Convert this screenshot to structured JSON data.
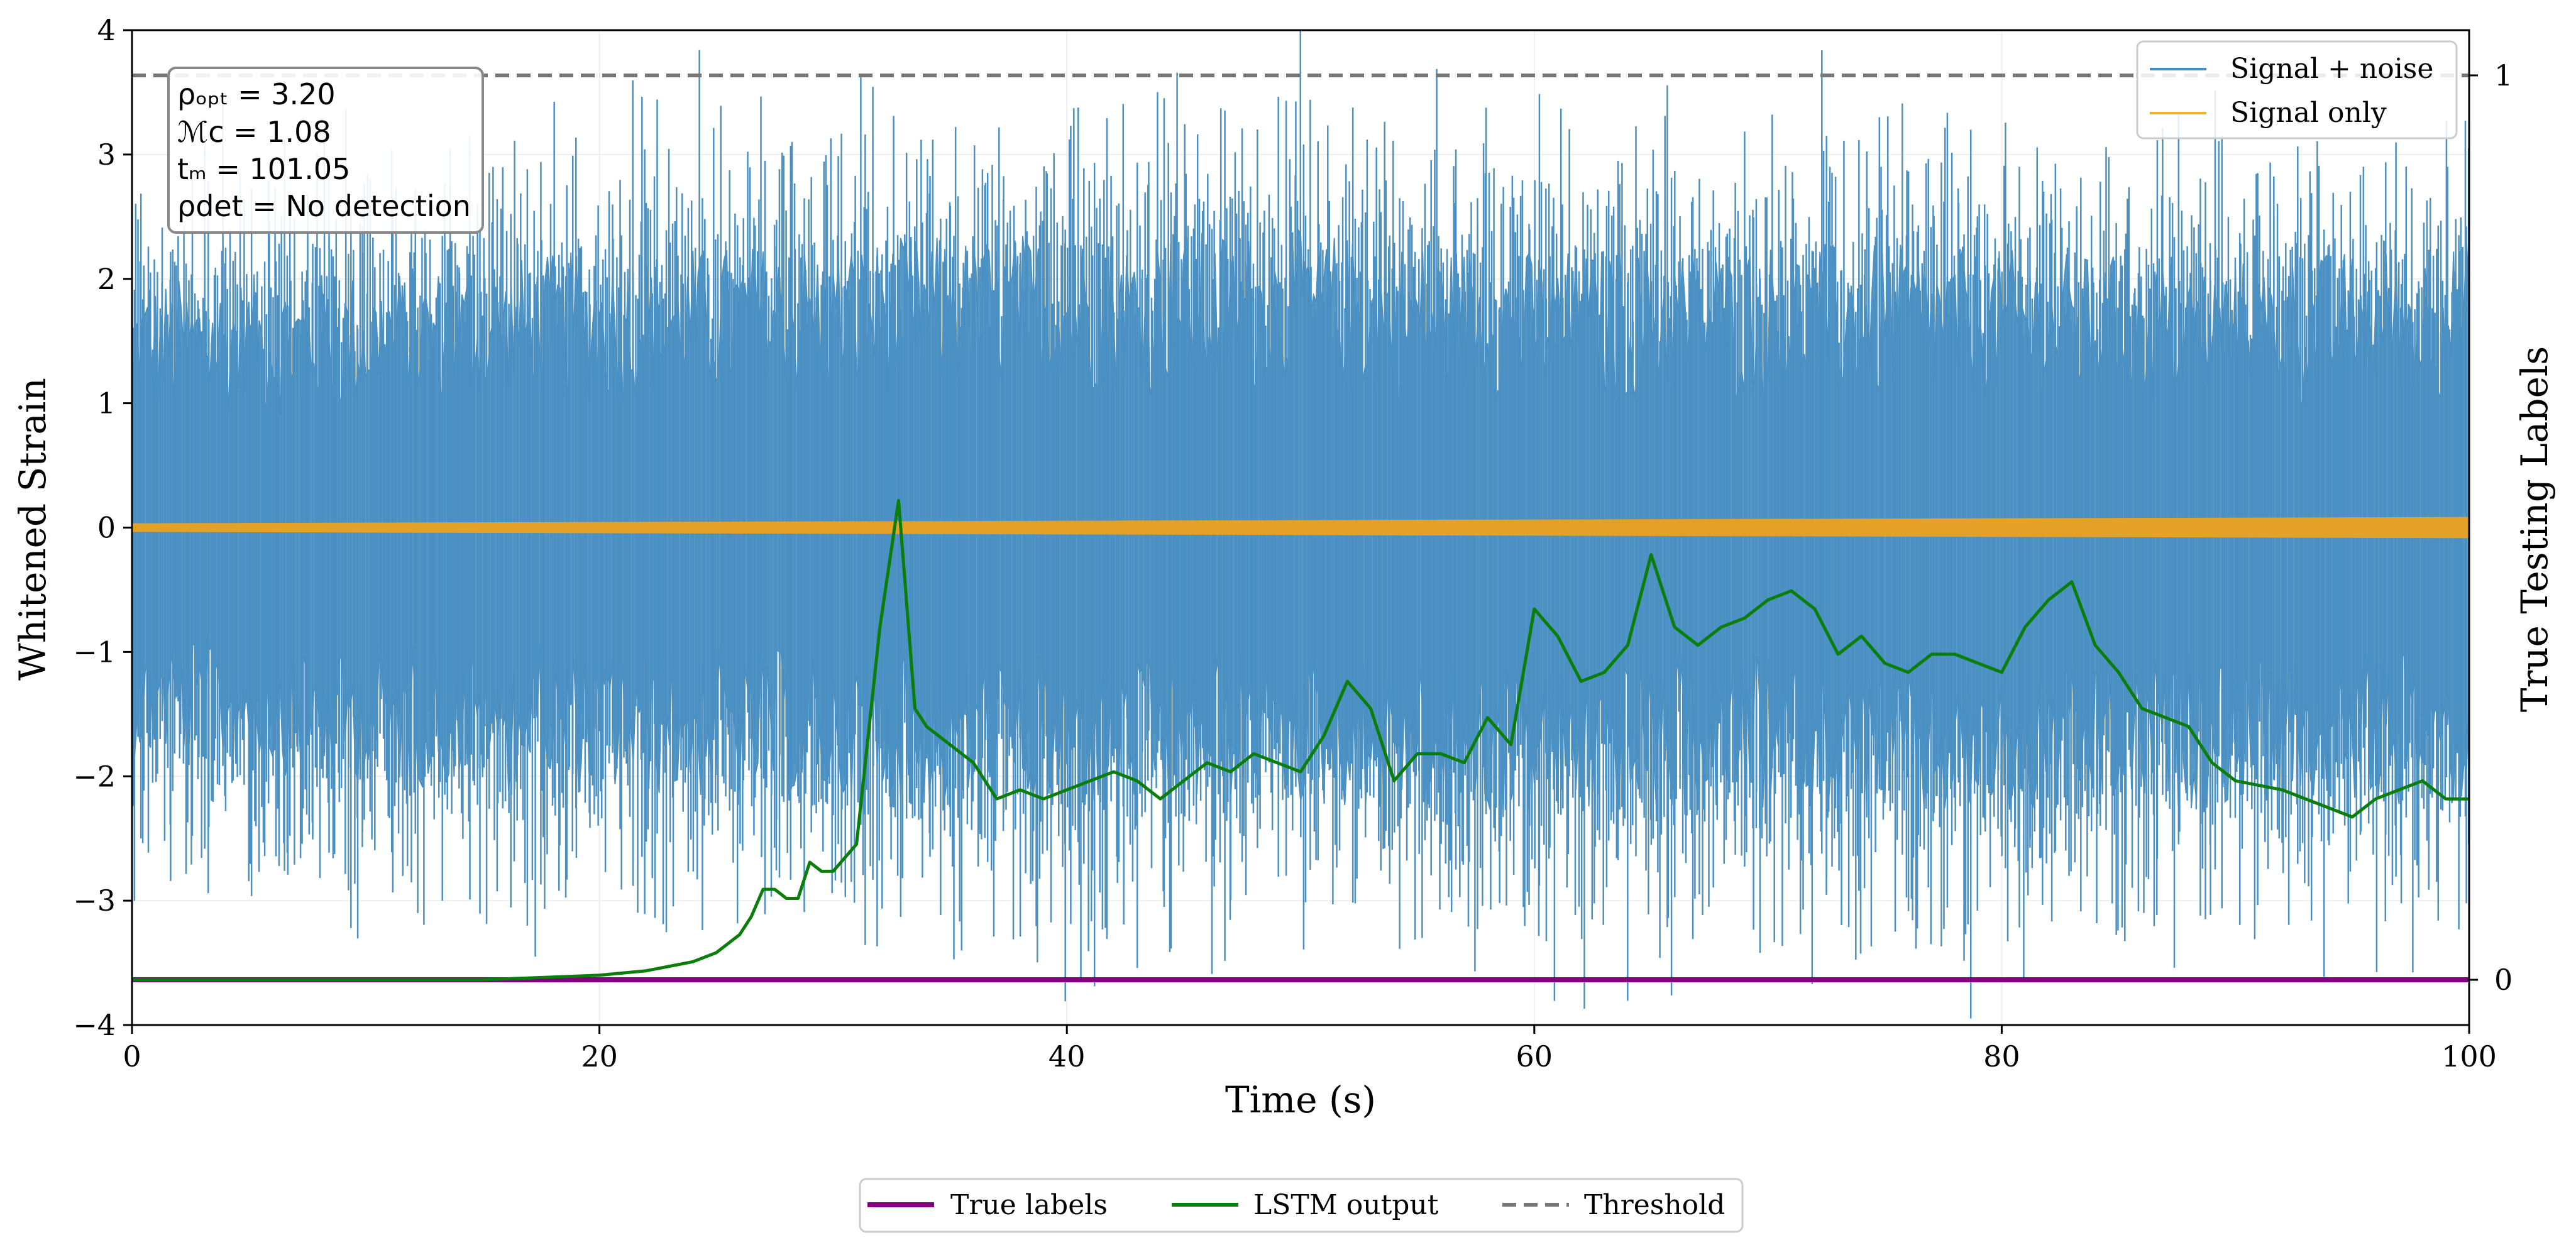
{
  "chart_data": {
    "type": "line",
    "xlabel": "Time (s)",
    "ylabel_left": "Whitened Strain",
    "ylabel_right": "True Testing Labels",
    "xlim": [
      0,
      100
    ],
    "ylim_left": [
      -4,
      4
    ],
    "ylim_right": [
      -0.05,
      1.05
    ],
    "x_ticks": [
      "0",
      "20",
      "40",
      "60",
      "80",
      "100"
    ],
    "y_ticks_left": [
      "−4",
      "−3",
      "−2",
      "−1",
      "0",
      "1",
      "2",
      "3",
      "4"
    ],
    "y_ticks_right": [
      "0",
      "1"
    ],
    "annotation": {
      "rho_opt": "ρₒₚₜ = 3.20",
      "chirp_mass": "ℳᴄ = 1.08",
      "t_m": "tₘ = 101.05",
      "rho_det": "ρdet = No detection"
    },
    "legend_upper": [
      "Signal + noise",
      "Signal only"
    ],
    "legend_lower": [
      "True labels",
      "LSTM output",
      "Threshold"
    ],
    "threshold": 1.0,
    "true_labels": {
      "x": [
        0,
        100
      ],
      "y": [
        0,
        0
      ]
    },
    "noise_envelope": {
      "x": [
        0,
        10,
        20,
        30,
        40,
        50,
        60,
        70,
        80,
        90,
        100
      ],
      "upper": [
        2.5,
        2.6,
        2.8,
        2.9,
        3.0,
        3.0,
        2.8,
        2.9,
        2.8,
        2.7,
        2.9
      ],
      "lower": [
        -2.3,
        -2.6,
        -2.7,
        -2.8,
        -2.9,
        -2.8,
        -3.0,
        -2.9,
        -3.0,
        -2.8,
        -2.8
      ]
    },
    "signal_only": {
      "x": [
        0,
        100
      ],
      "amplitude": [
        0.03,
        0.08
      ],
      "center": 0.0
    },
    "lstm_output": {
      "x": [
        0,
        5,
        10,
        15,
        18,
        20,
        22,
        24,
        25,
        26,
        26.5,
        27,
        27.5,
        28,
        28.5,
        29,
        29.5,
        30,
        31,
        32,
        32.8,
        33.5,
        34,
        35,
        36,
        37,
        38,
        39,
        40,
        41,
        42,
        43,
        44,
        45,
        46,
        47,
        48,
        50,
        51,
        52,
        53,
        54,
        55,
        56,
        57,
        58,
        59,
        60,
        61,
        62,
        63,
        64,
        65,
        66,
        67,
        68,
        69,
        70,
        71,
        72,
        73,
        74,
        75,
        76,
        77,
        78,
        79,
        80,
        81,
        82,
        83,
        84,
        85,
        86,
        87,
        88,
        89,
        90,
        92,
        94,
        95,
        96,
        97,
        98,
        99,
        100
      ],
      "y": [
        0.0,
        0.0,
        0.0,
        0.0,
        0.003,
        0.005,
        0.01,
        0.02,
        0.03,
        0.05,
        0.07,
        0.1,
        0.1,
        0.09,
        0.09,
        0.13,
        0.12,
        0.12,
        0.15,
        0.39,
        0.53,
        0.3,
        0.28,
        0.26,
        0.24,
        0.2,
        0.21,
        0.2,
        0.21,
        0.22,
        0.23,
        0.22,
        0.2,
        0.22,
        0.24,
        0.23,
        0.25,
        0.23,
        0.27,
        0.33,
        0.3,
        0.22,
        0.25,
        0.25,
        0.24,
        0.29,
        0.26,
        0.41,
        0.38,
        0.33,
        0.34,
        0.37,
        0.47,
        0.39,
        0.37,
        0.39,
        0.4,
        0.42,
        0.43,
        0.41,
        0.36,
        0.38,
        0.35,
        0.34,
        0.36,
        0.36,
        0.35,
        0.34,
        0.39,
        0.42,
        0.44,
        0.37,
        0.34,
        0.3,
        0.29,
        0.28,
        0.24,
        0.22,
        0.21,
        0.19,
        0.18,
        0.2,
        0.21,
        0.22,
        0.2,
        0.2
      ]
    }
  }
}
